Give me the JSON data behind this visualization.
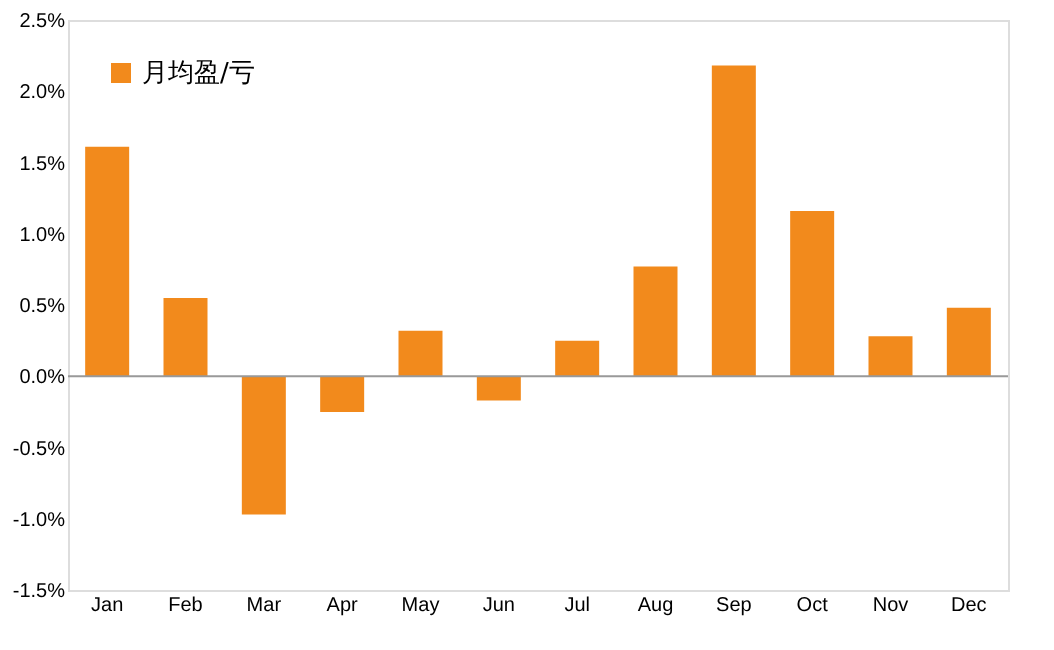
{
  "chart_data": {
    "type": "bar",
    "categories": [
      "Jan",
      "Feb",
      "Mar",
      "Apr",
      "May",
      "Jun",
      "Jul",
      "Aug",
      "Sep",
      "Oct",
      "Nov",
      "Dec"
    ],
    "series": [
      {
        "name": "月均盈/亏",
        "color": "#f28a1c",
        "values": [
          1.61,
          0.55,
          -0.97,
          -0.25,
          0.32,
          -0.17,
          0.25,
          0.77,
          2.18,
          1.16,
          0.28,
          0.48
        ]
      }
    ],
    "ylim": [
      -1.5,
      2.5
    ],
    "yticks": [
      {
        "value": -1.5,
        "label": "-1.5%"
      },
      {
        "value": -1.0,
        "label": "-1.0%"
      },
      {
        "value": -0.5,
        "label": "-0.5%"
      },
      {
        "value": 0,
        "label": "0.0%"
      },
      {
        "value": 0.5,
        "label": "0.5%"
      },
      {
        "value": 1.0,
        "label": "1.0%"
      },
      {
        "value": 1.5,
        "label": "1.5%"
      },
      {
        "value": 2.0,
        "label": "2.0%"
      },
      {
        "value": 2.5,
        "label": "2.5%"
      }
    ],
    "ref_lines": [
      {
        "axis": "y",
        "value": 0,
        "color": "#999999"
      }
    ],
    "grid": false,
    "legend": "top left"
  }
}
